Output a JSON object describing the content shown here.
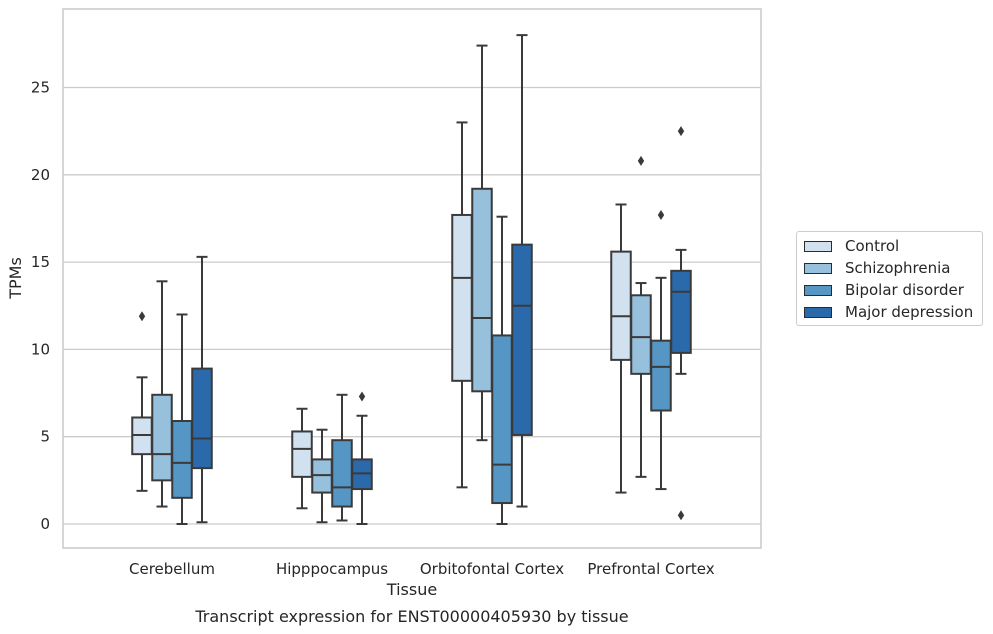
{
  "chart_data": {
    "type": "box",
    "title": "Transcript expression for ENST00000405930 by tissue",
    "xlabel": "Tissue",
    "ylabel": "TPMs",
    "ylim": [
      -1.3,
      29
    ],
    "yticks": [
      0,
      5,
      10,
      15,
      20,
      25
    ],
    "grid": "horizontal",
    "legend_position": "right",
    "categories": [
      "Cerebellum",
      "Hipppocampus",
      "Orbitofontal Cortex",
      "Prefrontal Cortex"
    ],
    "series": [
      {
        "name": "Control",
        "color": "#d1e1f0",
        "boxes": [
          {
            "whislo": 1.9,
            "q1": 4.0,
            "med": 5.1,
            "q3": 6.1,
            "whishi": 8.4,
            "fliers": [
              11.9
            ]
          },
          {
            "whislo": 0.9,
            "q1": 2.7,
            "med": 4.3,
            "q3": 5.3,
            "whishi": 6.6,
            "fliers": []
          },
          {
            "whislo": 2.1,
            "q1": 8.2,
            "med": 14.1,
            "q3": 17.7,
            "whishi": 23.0,
            "fliers": []
          },
          {
            "whislo": 1.8,
            "q1": 9.4,
            "med": 11.9,
            "q3": 15.6,
            "whishi": 18.3,
            "fliers": []
          }
        ]
      },
      {
        "name": "Schizophrenia",
        "color": "#96c0dc",
        "boxes": [
          {
            "whislo": 1.0,
            "q1": 2.5,
            "med": 4.0,
            "q3": 7.4,
            "whishi": 13.9,
            "fliers": []
          },
          {
            "whislo": 0.1,
            "q1": 1.8,
            "med": 2.8,
            "q3": 3.7,
            "whishi": 5.4,
            "fliers": []
          },
          {
            "whislo": 4.8,
            "q1": 7.6,
            "med": 11.8,
            "q3": 19.2,
            "whishi": 27.4,
            "fliers": []
          },
          {
            "whislo": 2.7,
            "q1": 8.6,
            "med": 10.7,
            "q3": 13.1,
            "whishi": 13.8,
            "fliers": [
              20.8
            ]
          }
        ]
      },
      {
        "name": "Bipolar disorder",
        "color": "#5596c4",
        "boxes": [
          {
            "whislo": 0.0,
            "q1": 1.5,
            "med": 3.5,
            "q3": 5.9,
            "whishi": 12.0,
            "fliers": []
          },
          {
            "whislo": 0.2,
            "q1": 1.0,
            "med": 2.1,
            "q3": 4.8,
            "whishi": 7.4,
            "fliers": []
          },
          {
            "whislo": 0.0,
            "q1": 1.2,
            "med": 3.4,
            "q3": 10.8,
            "whishi": 17.6,
            "fliers": []
          },
          {
            "whislo": 2.0,
            "q1": 6.5,
            "med": 9.0,
            "q3": 10.5,
            "whishi": 14.1,
            "fliers": [
              17.7
            ]
          }
        ]
      },
      {
        "name": "Major depression",
        "color": "#2a6aaa",
        "boxes": [
          {
            "whislo": 0.1,
            "q1": 3.2,
            "med": 4.9,
            "q3": 8.9,
            "whishi": 15.3,
            "fliers": []
          },
          {
            "whislo": 0.0,
            "q1": 2.0,
            "med": 2.9,
            "q3": 3.7,
            "whishi": 6.2,
            "fliers": [
              7.3
            ]
          },
          {
            "whislo": 1.0,
            "q1": 5.1,
            "med": 12.5,
            "q3": 16.0,
            "whishi": 28.0,
            "fliers": []
          },
          {
            "whislo": 8.6,
            "q1": 9.8,
            "med": 13.3,
            "q3": 14.5,
            "whishi": 15.7,
            "fliers": [
              0.5,
              22.5
            ]
          }
        ]
      }
    ]
  }
}
